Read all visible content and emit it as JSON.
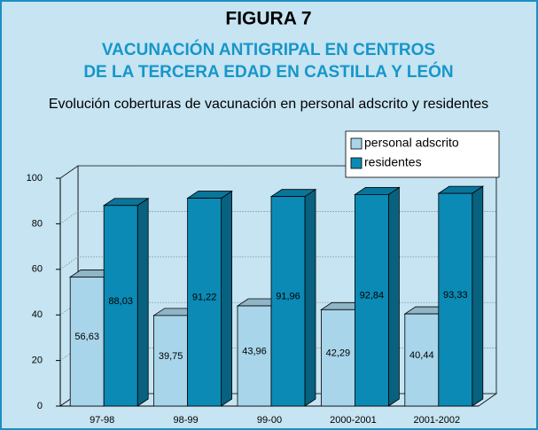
{
  "chart_data": {
    "type": "bar3d",
    "title": "FIGURA 7",
    "subtitle": [
      "VACUNACIÓN ANTIGRIPAL EN CENTROS",
      "DE LA TERCERA EDAD EN CASTILLA Y LEÓN"
    ],
    "description": "Evolución coberturas de vacunación en personal adscrito y residentes",
    "categories": [
      "97-98",
      "98-99",
      "99-00",
      "2000-2001",
      "2001-2002"
    ],
    "series": [
      {
        "name": "personal adscrito",
        "color": "#a8d5ea",
        "values": [
          56.63,
          39.75,
          43.96,
          42.29,
          40.44
        ],
        "value_labels": [
          "56,63",
          "39,75",
          "43,96",
          "42,29",
          "40,44"
        ]
      },
      {
        "name": "residentes",
        "color": "#0b8ab5",
        "values": [
          88.03,
          91.22,
          91.96,
          92.84,
          93.33
        ],
        "value_labels": [
          "88,03",
          "91,22",
          "91,96",
          "92,84",
          "93,33"
        ]
      }
    ],
    "ylim": [
      0,
      100
    ],
    "yticks": [
      0,
      20,
      40,
      60,
      80,
      100
    ],
    "grid": true,
    "legend": "top-right"
  }
}
